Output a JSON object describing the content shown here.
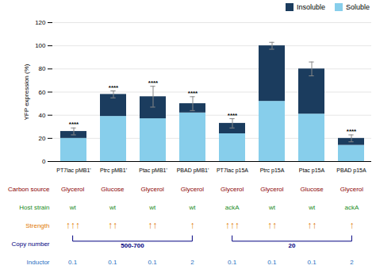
{
  "chart_data": {
    "type": "bar",
    "stacked": true,
    "categories": [
      "PT7lac pMB1'",
      "Ptrc pMB1'",
      "Ptac pMB1'",
      "PBAD pMB1'",
      "PT7lac p15A",
      "Ptrc p15A",
      "Ptac p15A",
      "PBAD p15A"
    ],
    "series": [
      {
        "name": "Soluble",
        "color": "#87CEEB",
        "values": [
          20,
          39,
          37,
          42,
          24,
          52,
          41,
          14
        ]
      },
      {
        "name": "Insoluble",
        "color": "#1B3C5E",
        "values": [
          6,
          19,
          19,
          8,
          9,
          48,
          39,
          6
        ]
      }
    ],
    "errors": [
      3,
      3,
      9,
      6,
      4,
      3,
      6,
      3
    ],
    "significance": [
      "****",
      "****",
      "****",
      "****",
      "****",
      null,
      null,
      "****"
    ],
    "ylabel": "YFP expression (%)",
    "ylim": [
      0,
      120
    ],
    "yticks": [
      0,
      20,
      40,
      60,
      80,
      100,
      120
    ],
    "grid": true,
    "legend": "top-right",
    "annotation_rows": [
      {
        "label": "Carbon source",
        "color": "#8B0000",
        "values": [
          "Glycerol",
          "Glucose",
          "Glycerol",
          "Glycerol",
          "Glycerol",
          "Glycerol",
          "Glucose",
          "Glycerol"
        ]
      },
      {
        "label": "Host strain",
        "color": "#228B22",
        "values": [
          "wt",
          "wt",
          "wt",
          "wt",
          "ackA",
          "wt",
          "wt",
          "ackA"
        ]
      },
      {
        "label": "Strength",
        "color": "#E07800",
        "values": [
          "↑↑↑",
          "↑↑",
          "↑↑",
          "↑",
          "↑↑↑",
          "↑↑",
          "↑↑",
          "↑"
        ]
      },
      {
        "label": "Copy number",
        "color": "#000080",
        "groups": [
          {
            "label": "500-700",
            "from": "PT7lac pMB1'",
            "to": "PBAD pMB1'"
          },
          {
            "label": "20",
            "from": "PT7lac p15A",
            "to": "PBAD p15A"
          }
        ]
      },
      {
        "label": "Inductor",
        "color": "#1E6FBF",
        "values": [
          "0.1",
          "0.1",
          "0.1",
          "2",
          "0.1",
          "0.1",
          "0.1",
          "2"
        ]
      }
    ]
  }
}
